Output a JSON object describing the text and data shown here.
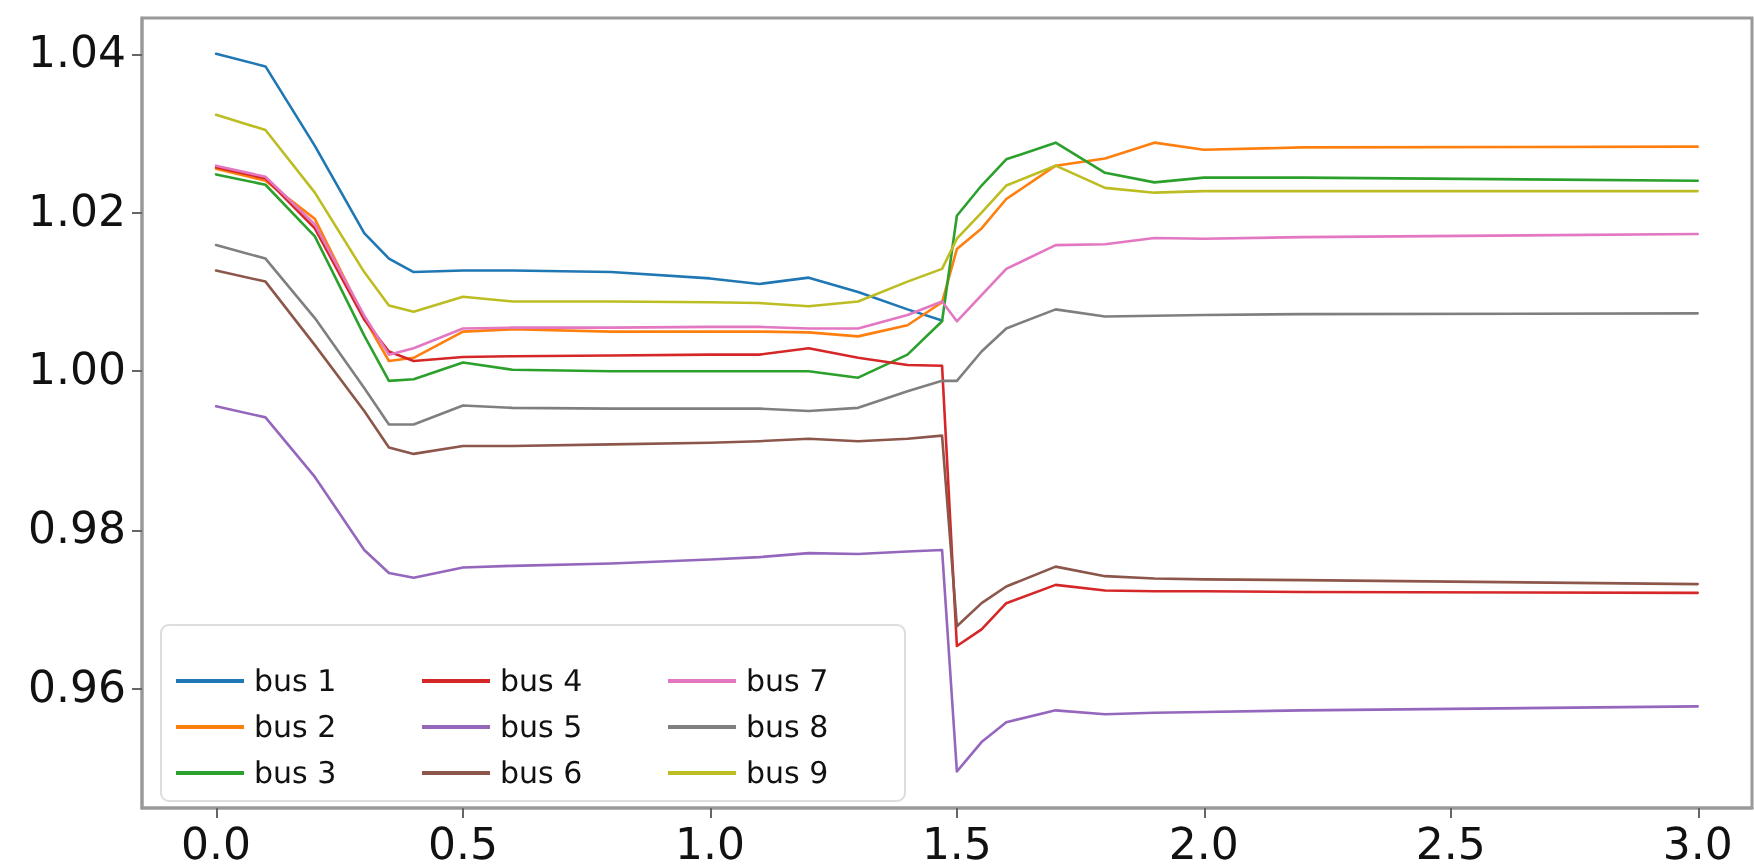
{
  "chart_data": {
    "type": "line",
    "x": [
      0,
      0.1,
      0.2,
      0.3,
      0.35,
      0.4,
      0.5,
      0.6,
      0.8,
      1.0,
      1.1,
      1.2,
      1.3,
      1.4,
      1.47,
      1.5,
      1.55,
      1.6,
      1.7,
      1.8,
      1.9,
      2.0,
      2.2,
      3.0
    ],
    "series": [
      {
        "name": "bus 1",
        "color": "#1f77b4",
        "values": [
          1.04,
          1.0384,
          1.0284,
          1.0174,
          1.0142,
          1.0125,
          1.0127,
          1.0127,
          1.0125,
          1.0117,
          1.011,
          1.0118,
          1.01,
          1.0078,
          1.0064,
          null,
          null,
          null,
          null,
          null,
          null,
          null,
          null,
          null
        ]
      },
      {
        "name": "bus 2",
        "color": "#ff7f0e",
        "values": [
          1.0255,
          1.024,
          1.0192,
          1.0067,
          1.0013,
          1.0017,
          1.005,
          1.0053,
          1.005,
          1.005,
          1.005,
          1.0049,
          1.0044,
          1.0058,
          1.0087,
          1.0154,
          1.018,
          1.0217,
          1.0259,
          1.0268,
          1.0288,
          1.0279,
          1.0282,
          1.0283
        ]
      },
      {
        "name": "bus 3",
        "color": "#2ca02c",
        "values": [
          1.0248,
          1.0235,
          1.017,
          1.0045,
          0.9988,
          0.999,
          1.0011,
          1.0002,
          1.0,
          1.0,
          1.0,
          1.0,
          0.9992,
          1.0021,
          1.0063,
          1.0196,
          1.0234,
          1.0267,
          1.0288,
          1.025,
          1.0238,
          1.0244,
          1.0244,
          1.024
        ]
      },
      {
        "name": "bus 4",
        "color": "#d62728",
        "values": [
          1.0257,
          1.0243,
          1.018,
          1.0065,
          1.0025,
          1.0013,
          1.0018,
          1.0019,
          1.002,
          1.0021,
          1.0021,
          1.0029,
          1.0017,
          1.0008,
          1.0007,
          0.9654,
          0.9675,
          0.9708,
          0.9731,
          0.9724,
          0.9723,
          0.9723,
          0.9722,
          0.9721
        ]
      },
      {
        "name": "bus 5",
        "color": "#9467bd",
        "values": [
          0.9956,
          0.9942,
          0.9867,
          0.9775,
          0.9746,
          0.974,
          0.9753,
          0.9755,
          0.9758,
          0.9763,
          0.9766,
          0.9771,
          0.977,
          0.9773,
          0.9775,
          0.9496,
          0.9533,
          0.9558,
          0.9573,
          0.9568,
          0.957,
          0.9571,
          0.9573,
          0.9578
        ]
      },
      {
        "name": "bus 6",
        "color": "#8c564b",
        "values": [
          1.0127,
          1.0113,
          1.0033,
          0.995,
          0.9904,
          0.9896,
          0.9906,
          0.9906,
          0.9908,
          0.991,
          0.9912,
          0.9915,
          0.9912,
          0.9915,
          0.9919,
          0.9679,
          0.9708,
          0.9729,
          0.9754,
          0.9742,
          0.9739,
          0.9738,
          0.9737,
          0.9732
        ]
      },
      {
        "name": "bus 7",
        "color": "#e377c2",
        "values": [
          1.0259,
          1.0245,
          1.0185,
          1.007,
          1.0021,
          1.0029,
          1.0054,
          1.0055,
          1.0055,
          1.0056,
          1.0056,
          1.0054,
          1.0054,
          1.0071,
          1.0088,
          1.0063,
          1.0096,
          1.0129,
          1.0159,
          1.016,
          1.0168,
          1.0167,
          1.0169,
          1.0173
        ]
      },
      {
        "name": "bus 8",
        "color": "#7f7f7f",
        "values": [
          1.0159,
          1.0142,
          1.0067,
          0.9979,
          0.9933,
          0.9933,
          0.9957,
          0.9954,
          0.9953,
          0.9953,
          0.9953,
          0.995,
          0.9954,
          0.9975,
          0.9988,
          0.9988,
          1.0025,
          1.0054,
          1.0078,
          1.0069,
          1.007,
          1.0071,
          1.0072,
          1.0073
        ]
      },
      {
        "name": "bus 9",
        "color": "#bcbd22",
        "values": [
          1.0323,
          1.0304,
          1.0225,
          1.0125,
          1.0083,
          1.0075,
          1.0094,
          1.0088,
          1.0088,
          1.0087,
          1.0086,
          1.0082,
          1.0088,
          1.0113,
          1.0129,
          1.0167,
          1.02,
          1.0234,
          1.0259,
          1.0231,
          1.0225,
          1.0227,
          1.0227,
          1.0227
        ]
      }
    ],
    "xlim": [
      -0.15,
      3.11
    ],
    "xticks": [
      {
        "value": 0,
        "label": "0.0"
      },
      {
        "value": 0.5,
        "label": "0.5"
      },
      {
        "value": 1,
        "label": "1.0"
      },
      {
        "value": 1.5,
        "label": "1.5"
      },
      {
        "value": 2,
        "label": "2.0"
      },
      {
        "value": 2.5,
        "label": "2.5"
      },
      {
        "value": 3,
        "label": "3.0"
      }
    ],
    "ylim": [
      0.945,
      1.0445
    ],
    "yticks": [
      {
        "value": 0.96,
        "label": "0.96"
      },
      {
        "value": 0.98,
        "label": "0.98"
      },
      {
        "value": 1,
        "label": "1.00"
      },
      {
        "value": 1.02,
        "label": "1.02"
      },
      {
        "value": 1.04,
        "label": "1.04"
      }
    ],
    "grid": false,
    "legend": "bottom left",
    "marker": "none",
    "line_style": "solid"
  }
}
